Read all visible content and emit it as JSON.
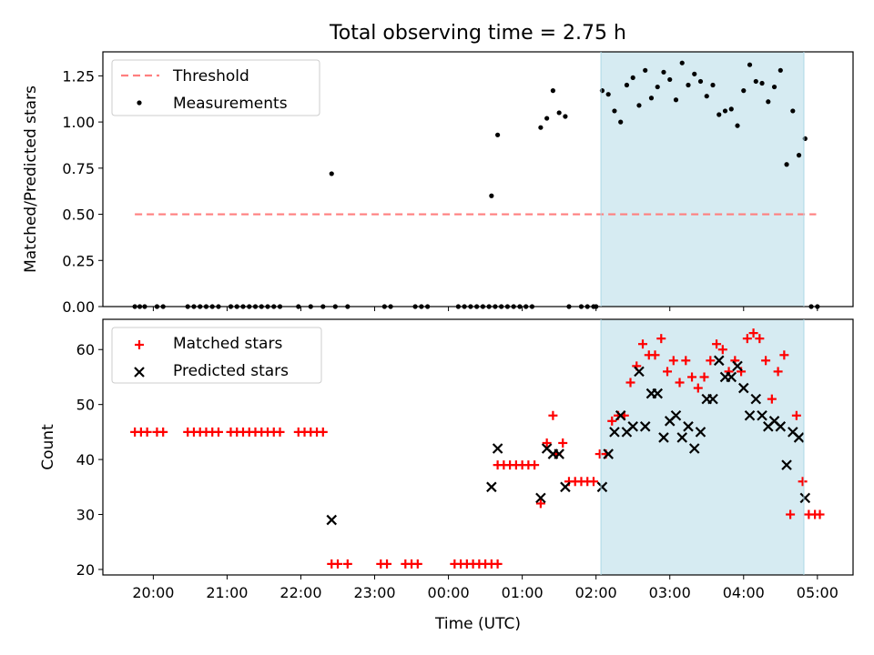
{
  "title": "Total observing time = 2.75 h",
  "xlabel": "Time (UTC)",
  "x_ticks": [
    "20:00",
    "21:00",
    "22:00",
    "23:00",
    "00:00",
    "01:00",
    "02:00",
    "03:00",
    "04:00",
    "05:00"
  ],
  "colors": {
    "threshold": "#ff7f7f",
    "measurement": "#000000",
    "matched": "#ff0000",
    "predicted": "#000000",
    "observing_span": "#add8e6"
  },
  "chart_data": [
    {
      "type": "scatter",
      "panel": "top",
      "ylabel": "Matched/Predicted stars",
      "ylim": [
        0,
        1.38
      ],
      "yticks": [
        "0.00",
        "0.25",
        "0.50",
        "0.75",
        "1.00",
        "1.25"
      ],
      "xlim": [
        "19:19",
        "05:29"
      ],
      "observing_span": [
        "02:04",
        "04:49"
      ],
      "legend": {
        "placement": "top-left",
        "entries": [
          "Threshold",
          "Measurements"
        ]
      },
      "threshold": {
        "name": "Threshold",
        "value": 0.5,
        "from": "19:45",
        "to": "04:59"
      },
      "series": [
        {
          "name": "Measurements",
          "points": [
            [
              "19:45",
              0
            ],
            [
              "19:49",
              0
            ],
            [
              "19:53",
              0
            ],
            [
              "20:03",
              0
            ],
            [
              "20:08",
              0
            ],
            [
              "20:28",
              0
            ],
            [
              "20:33",
              0
            ],
            [
              "20:38",
              0
            ],
            [
              "20:43",
              0
            ],
            [
              "20:48",
              0
            ],
            [
              "20:53",
              0
            ],
            [
              "21:03",
              0
            ],
            [
              "21:08",
              0
            ],
            [
              "21:13",
              0
            ],
            [
              "21:18",
              0
            ],
            [
              "21:23",
              0
            ],
            [
              "21:28",
              0
            ],
            [
              "21:33",
              0
            ],
            [
              "21:38",
              0
            ],
            [
              "21:43",
              0
            ],
            [
              "21:58",
              0
            ],
            [
              "22:08",
              0
            ],
            [
              "22:18",
              0
            ],
            [
              "22:25",
              0.72
            ],
            [
              "22:28",
              0
            ],
            [
              "22:38",
              0
            ],
            [
              "23:08",
              0
            ],
            [
              "23:13",
              0
            ],
            [
              "23:33",
              0
            ],
            [
              "23:38",
              0
            ],
            [
              "23:43",
              0
            ],
            [
              "00:08",
              0
            ],
            [
              "00:13",
              0
            ],
            [
              "00:18",
              0
            ],
            [
              "00:23",
              0
            ],
            [
              "00:28",
              0
            ],
            [
              "00:33",
              0
            ],
            [
              "00:38",
              0
            ],
            [
              "00:43",
              0
            ],
            [
              "00:35",
              0.6
            ],
            [
              "00:40",
              0.93
            ],
            [
              "00:48",
              0
            ],
            [
              "00:53",
              0
            ],
            [
              "00:58",
              0
            ],
            [
              "01:03",
              0
            ],
            [
              "01:08",
              0
            ],
            [
              "01:15",
              0.97
            ],
            [
              "01:20",
              1.02
            ],
            [
              "01:25",
              1.17
            ],
            [
              "01:30",
              1.05
            ],
            [
              "01:35",
              1.03
            ],
            [
              "01:38",
              0
            ],
            [
              "01:48",
              0
            ],
            [
              "01:53",
              0
            ],
            [
              "01:58",
              0
            ],
            [
              "02:00",
              0
            ],
            [
              "02:05",
              1.17
            ],
            [
              "02:10",
              1.15
            ],
            [
              "02:15",
              1.06
            ],
            [
              "02:20",
              1.0
            ],
            [
              "02:25",
              1.2
            ],
            [
              "02:30",
              1.24
            ],
            [
              "02:35",
              1.09
            ],
            [
              "02:40",
              1.28
            ],
            [
              "02:45",
              1.13
            ],
            [
              "02:50",
              1.19
            ],
            [
              "02:55",
              1.27
            ],
            [
              "03:00",
              1.23
            ],
            [
              "03:05",
              1.12
            ],
            [
              "03:10",
              1.32
            ],
            [
              "03:15",
              1.2
            ],
            [
              "03:20",
              1.26
            ],
            [
              "03:25",
              1.22
            ],
            [
              "03:30",
              1.14
            ],
            [
              "03:35",
              1.2
            ],
            [
              "03:40",
              1.04
            ],
            [
              "03:45",
              1.06
            ],
            [
              "03:50",
              1.07
            ],
            [
              "03:55",
              0.98
            ],
            [
              "04:00",
              1.17
            ],
            [
              "04:05",
              1.31
            ],
            [
              "04:10",
              1.22
            ],
            [
              "04:15",
              1.21
            ],
            [
              "04:20",
              1.11
            ],
            [
              "04:25",
              1.19
            ],
            [
              "04:30",
              1.28
            ],
            [
              "04:35",
              0.77
            ],
            [
              "04:40",
              1.06
            ],
            [
              "04:45",
              0.82
            ],
            [
              "04:50",
              0.91
            ],
            [
              "04:55",
              0
            ],
            [
              "05:00",
              0
            ]
          ]
        }
      ]
    },
    {
      "type": "scatter",
      "panel": "bottom",
      "ylabel": "Count",
      "xlabel": "Time (UTC)",
      "ylim": [
        19,
        65.5
      ],
      "yticks": [
        "20",
        "30",
        "40",
        "50",
        "60"
      ],
      "xlim": [
        "19:19",
        "05:29"
      ],
      "observing_span": [
        "02:04",
        "04:49"
      ],
      "legend": {
        "placement": "top-left",
        "entries": [
          "Matched stars",
          "Predicted stars"
        ]
      },
      "series": [
        {
          "name": "Matched stars",
          "marker": "plus",
          "points": [
            [
              "19:45",
              45
            ],
            [
              "19:50",
              45
            ],
            [
              "19:55",
              45
            ],
            [
              "20:03",
              45
            ],
            [
              "20:08",
              45
            ],
            [
              "20:28",
              45
            ],
            [
              "20:33",
              45
            ],
            [
              "20:38",
              45
            ],
            [
              "20:43",
              45
            ],
            [
              "20:48",
              45
            ],
            [
              "20:53",
              45
            ],
            [
              "21:03",
              45
            ],
            [
              "21:08",
              45
            ],
            [
              "21:13",
              45
            ],
            [
              "21:18",
              45
            ],
            [
              "21:23",
              45
            ],
            [
              "21:28",
              45
            ],
            [
              "21:33",
              45
            ],
            [
              "21:38",
              45
            ],
            [
              "21:43",
              45
            ],
            [
              "21:58",
              45
            ],
            [
              "22:03",
              45
            ],
            [
              "22:08",
              45
            ],
            [
              "22:13",
              45
            ],
            [
              "22:18",
              45
            ],
            [
              "22:25",
              21
            ],
            [
              "22:30",
              21
            ],
            [
              "22:38",
              21
            ],
            [
              "23:05",
              21
            ],
            [
              "23:10",
              21
            ],
            [
              "23:25",
              21
            ],
            [
              "23:30",
              21
            ],
            [
              "23:35",
              21
            ],
            [
              "00:05",
              21
            ],
            [
              "00:10",
              21
            ],
            [
              "00:15",
              21
            ],
            [
              "00:20",
              21
            ],
            [
              "00:25",
              21
            ],
            [
              "00:30",
              21
            ],
            [
              "00:35",
              21
            ],
            [
              "00:40",
              21
            ],
            [
              "00:40",
              39
            ],
            [
              "00:45",
              39
            ],
            [
              "00:50",
              39
            ],
            [
              "00:55",
              39
            ],
            [
              "01:00",
              39
            ],
            [
              "01:05",
              39
            ],
            [
              "01:10",
              39
            ],
            [
              "01:15",
              32
            ],
            [
              "01:20",
              43
            ],
            [
              "01:25",
              48
            ],
            [
              "01:28",
              41
            ],
            [
              "01:33",
              43
            ],
            [
              "01:38",
              36
            ],
            [
              "01:43",
              36
            ],
            [
              "01:48",
              36
            ],
            [
              "01:53",
              36
            ],
            [
              "01:58",
              36
            ],
            [
              "02:03",
              41
            ],
            [
              "02:08",
              41
            ],
            [
              "02:13",
              47
            ],
            [
              "02:18",
              48
            ],
            [
              "02:23",
              48
            ],
            [
              "02:28",
              54
            ],
            [
              "02:33",
              57
            ],
            [
              "02:38",
              61
            ],
            [
              "02:43",
              59
            ],
            [
              "02:48",
              59
            ],
            [
              "02:53",
              62
            ],
            [
              "02:58",
              56
            ],
            [
              "03:03",
              58
            ],
            [
              "03:08",
              54
            ],
            [
              "03:13",
              58
            ],
            [
              "03:18",
              55
            ],
            [
              "03:23",
              53
            ],
            [
              "03:28",
              55
            ],
            [
              "03:33",
              58
            ],
            [
              "03:38",
              61
            ],
            [
              "03:43",
              60
            ],
            [
              "03:48",
              56
            ],
            [
              "03:53",
              58
            ],
            [
              "03:58",
              56
            ],
            [
              "04:03",
              62
            ],
            [
              "04:08",
              63
            ],
            [
              "04:13",
              62
            ],
            [
              "04:18",
              58
            ],
            [
              "04:23",
              51
            ],
            [
              "04:28",
              56
            ],
            [
              "04:33",
              59
            ],
            [
              "04:38",
              30
            ],
            [
              "04:43",
              48
            ],
            [
              "04:48",
              36
            ],
            [
              "04:53",
              30
            ],
            [
              "04:58",
              30
            ],
            [
              "05:02",
              30
            ]
          ]
        },
        {
          "name": "Predicted stars",
          "marker": "x",
          "points": [
            [
              "22:25",
              29
            ],
            [
              "00:35",
              35
            ],
            [
              "00:40",
              42
            ],
            [
              "01:15",
              33
            ],
            [
              "01:20",
              42
            ],
            [
              "01:25",
              41
            ],
            [
              "01:30",
              41
            ],
            [
              "01:35",
              35
            ],
            [
              "02:05",
              35
            ],
            [
              "02:10",
              41
            ],
            [
              "02:15",
              45
            ],
            [
              "02:20",
              48
            ],
            [
              "02:25",
              45
            ],
            [
              "02:30",
              46
            ],
            [
              "02:35",
              56
            ],
            [
              "02:40",
              46
            ],
            [
              "02:45",
              52
            ],
            [
              "02:50",
              52
            ],
            [
              "02:55",
              44
            ],
            [
              "03:00",
              47
            ],
            [
              "03:05",
              48
            ],
            [
              "03:10",
              44
            ],
            [
              "03:15",
              46
            ],
            [
              "03:20",
              42
            ],
            [
              "03:25",
              45
            ],
            [
              "03:30",
              51
            ],
            [
              "03:35",
              51
            ],
            [
              "03:40",
              58
            ],
            [
              "03:45",
              55
            ],
            [
              "03:50",
              55
            ],
            [
              "03:55",
              57
            ],
            [
              "04:00",
              53
            ],
            [
              "04:05",
              48
            ],
            [
              "04:10",
              51
            ],
            [
              "04:15",
              48
            ],
            [
              "04:20",
              46
            ],
            [
              "04:25",
              47
            ],
            [
              "04:30",
              46
            ],
            [
              "04:35",
              39
            ],
            [
              "04:40",
              45
            ],
            [
              "04:45",
              44
            ],
            [
              "04:50",
              33
            ]
          ]
        }
      ]
    }
  ]
}
